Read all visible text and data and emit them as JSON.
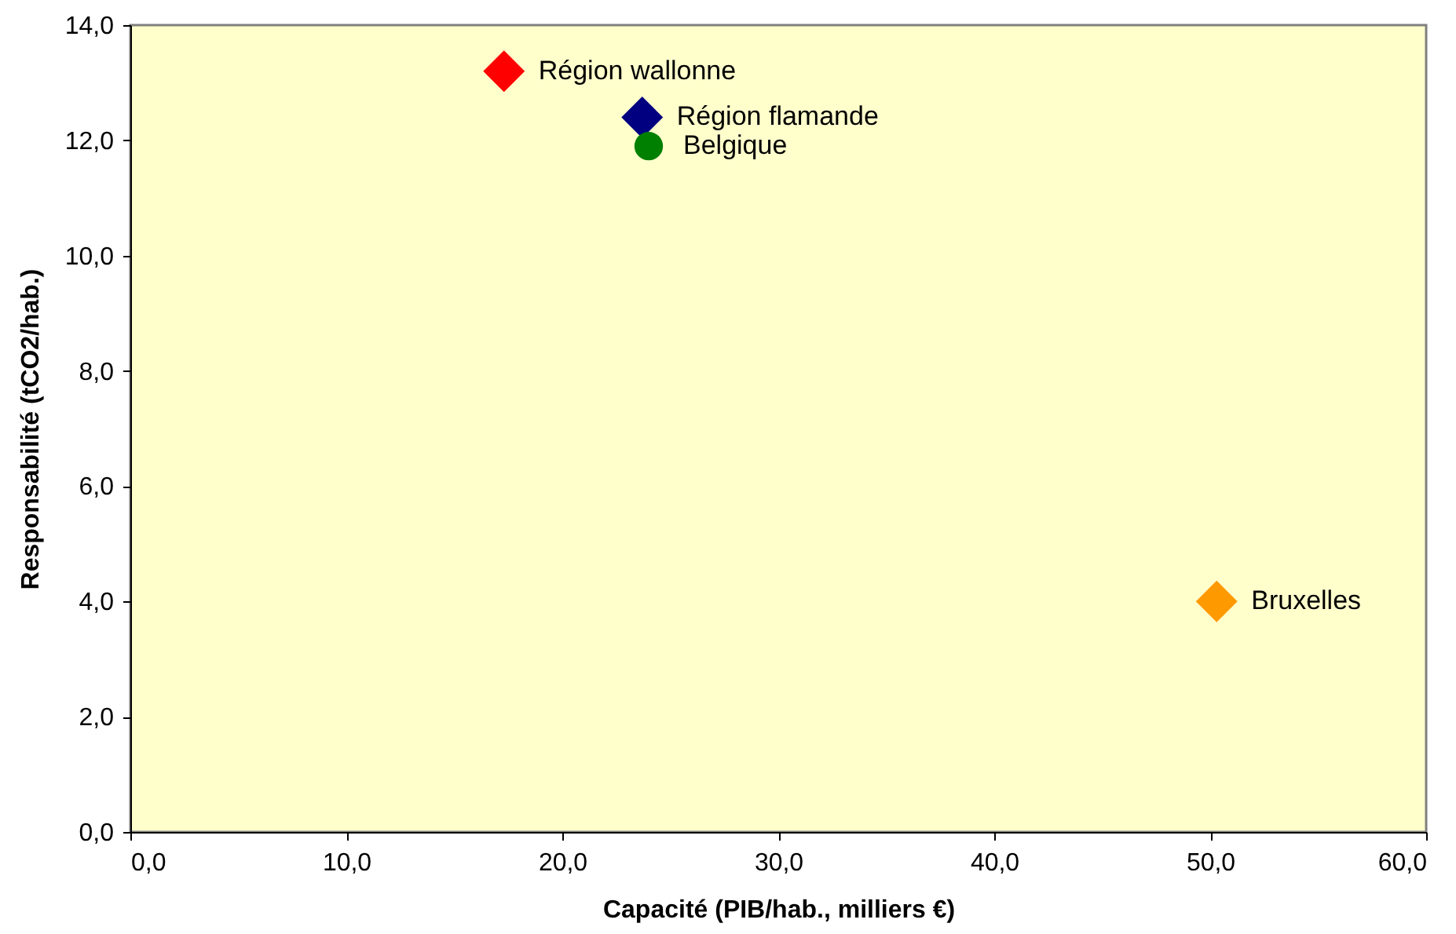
{
  "chart_data": {
    "type": "scatter",
    "xlabel": "Capacité (PIB/hab., milliers €)",
    "ylabel": "Responsabilité (tCO2/hab.)",
    "series": [
      {
        "name": "Région wallonne",
        "color": "#ff0000",
        "marker": "diamond",
        "x": [
          17.3
        ],
        "values": [
          13.2
        ]
      },
      {
        "name": "Région flamande",
        "color": "#000080",
        "marker": "diamond",
        "x": [
          23.7
        ],
        "values": [
          12.4
        ]
      },
      {
        "name": "Belgique",
        "color": "#008000",
        "marker": "circle",
        "x": [
          24.0
        ],
        "values": [
          11.9
        ]
      },
      {
        "name": "Bruxelles",
        "color": "#ff9900",
        "marker": "diamond",
        "x": [
          50.3
        ],
        "values": [
          4.0
        ]
      }
    ],
    "xlim": [
      0,
      60
    ],
    "ylim": [
      0,
      14
    ],
    "xticks": [
      {
        "value": 0,
        "label": "0,0"
      },
      {
        "value": 10,
        "label": "10,0"
      },
      {
        "value": 20,
        "label": "20,0"
      },
      {
        "value": 30,
        "label": "30,0"
      },
      {
        "value": 40,
        "label": "40,0"
      },
      {
        "value": 50,
        "label": "50,0"
      },
      {
        "value": 60,
        "label": "60,0"
      }
    ],
    "yticks": [
      {
        "value": 0,
        "label": "0,0"
      },
      {
        "value": 2,
        "label": "2,0"
      },
      {
        "value": 4,
        "label": "4,0"
      },
      {
        "value": 6,
        "label": "6,0"
      },
      {
        "value": 8,
        "label": "8,0"
      },
      {
        "value": 10,
        "label": "10,0"
      },
      {
        "value": 12,
        "label": "12,0"
      },
      {
        "value": 14,
        "label": "14,0"
      }
    ],
    "grid": false
  }
}
